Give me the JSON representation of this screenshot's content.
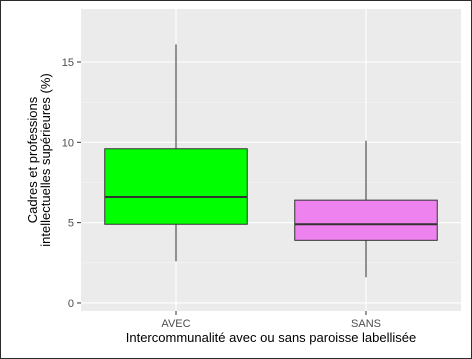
{
  "chart_data": {
    "type": "boxplot",
    "title": "",
    "xlabel": "Intercommunalité avec ou sans paroisse labellisée",
    "ylabel_lines": [
      "Cadres et professions",
      "intellectuelles supérieures (%)"
    ],
    "categories": [
      "AVEC",
      "SANS"
    ],
    "ylim": [
      -0.5,
      18.3
    ],
    "yticks": [
      0,
      5,
      10,
      15
    ],
    "grid": true,
    "legend": "none",
    "boxes": [
      {
        "category": "AVEC",
        "whisker_low": 2.6,
        "q1": 4.9,
        "median": 6.6,
        "q3": 9.6,
        "whisker_high": 16.1,
        "color": "#00ff00"
      },
      {
        "category": "SANS",
        "whisker_low": 1.6,
        "q1": 3.9,
        "median": 4.9,
        "q3": 6.4,
        "whisker_high": 10.1,
        "color": "#ee82ee"
      }
    ],
    "colors": {
      "panel": "#ebebeb",
      "grid_major": "#ffffff",
      "grid_minor": "#f5f5f5",
      "box_stroke": "#333333",
      "tick_text": "#4d4d4d",
      "title_text": "#000000"
    }
  }
}
